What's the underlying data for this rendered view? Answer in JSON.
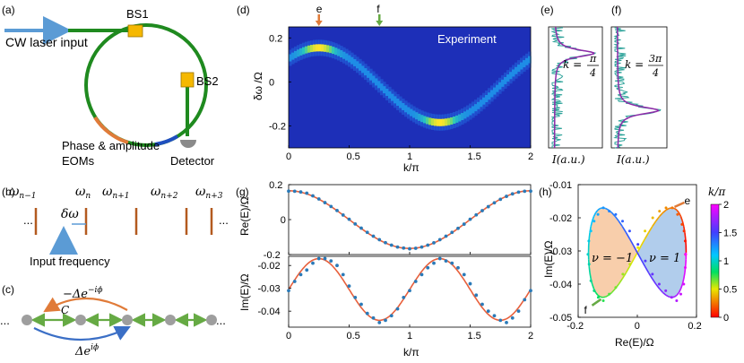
{
  "panel_labels": {
    "a": "(a)",
    "b": "(b)",
    "c": "(c)",
    "d": "(d)",
    "e": "(e)",
    "f": "(f)",
    "g": "(g)",
    "h": "(h)"
  },
  "panel_a": {
    "bs1": "BS1",
    "bs2": "BS2",
    "laser": "CW laser input",
    "eoms_line1": "Phase & amplitude",
    "eoms_line2": "EOMs",
    "detector": "Detector"
  },
  "panel_b": {
    "modes": [
      "ω",
      "ω",
      "ω",
      "ω",
      "ω"
    ],
    "mode_subs": [
      "n−1",
      "n",
      "n+1",
      "n+2",
      "n+3"
    ],
    "ellipsis": "...",
    "delta": "δω",
    "input": "Input frequency"
  },
  "panel_c": {
    "top": "−Δe",
    "top_sup": "−iϕ",
    "bottom": "Δe",
    "bottom_sup": "iϕ",
    "coupling": "C",
    "ellipsis": "..."
  },
  "colors": {
    "ring": "#1f8a1f",
    "laser": "#5b9bd5",
    "bs": "#f5b800",
    "orange": "#e07b39",
    "blue": "#1f4fbf",
    "fit": "#e8603c",
    "dots": "#2a7ab8",
    "modeline": "#b35a1f",
    "arrow_green": "#66aa44"
  },
  "chart_data": [
    {
      "panel": "d",
      "type": "heatmap",
      "title": "Experiment",
      "xlabel": "k/π",
      "ylabel": "δω /Ω",
      "xlim": [
        0,
        2
      ],
      "ylim": [
        -0.3,
        0.25
      ],
      "xticks": [
        "0",
        "0.5",
        "1",
        "1.5",
        "2"
      ],
      "yticks": [
        "0.2",
        "0",
        "-0.2"
      ],
      "markers": [
        {
          "label": "e",
          "k": 0.25,
          "color": "#e07b39"
        },
        {
          "label": "f",
          "k": 0.75,
          "color": "#66aa44"
        }
      ],
      "band": {
        "center": -0.015,
        "amplitude": 0.17,
        "peaks": [
          0.25,
          1.25
        ]
      }
    },
    {
      "panel": "e",
      "type": "line",
      "annotation": "k = π/4",
      "numerator": "π",
      "denominator": "4",
      "xlabel": "I(a.u.)",
      "peak_delta": 0.13
    },
    {
      "panel": "f",
      "type": "line",
      "annotation": "k = 3π/4",
      "numerator": "3π",
      "denominator": "4",
      "xlabel": "I(a.u.)",
      "peak_delta": -0.13
    },
    {
      "panel": "g-top",
      "type": "scatter",
      "ylabel": "Re(E)/Ω",
      "xlim": [
        0,
        2
      ],
      "ylim": [
        -0.2,
        0.2
      ],
      "yticks": [
        "0.2",
        "0",
        "-0.2"
      ],
      "fit": {
        "form": "A cos(πk)",
        "A": 0.165
      },
      "points": [
        [
          0.0,
          0.163
        ],
        [
          0.05,
          0.162
        ],
        [
          0.1,
          0.158
        ],
        [
          0.15,
          0.151
        ],
        [
          0.2,
          0.136
        ],
        [
          0.25,
          0.118
        ],
        [
          0.3,
          0.097
        ],
        [
          0.35,
          0.075
        ],
        [
          0.4,
          0.052
        ],
        [
          0.45,
          0.026
        ],
        [
          0.5,
          0.002
        ],
        [
          0.55,
          -0.025
        ],
        [
          0.6,
          -0.049
        ],
        [
          0.65,
          -0.073
        ],
        [
          0.7,
          -0.095
        ],
        [
          0.75,
          -0.115
        ],
        [
          0.8,
          -0.132
        ],
        [
          0.85,
          -0.146
        ],
        [
          0.9,
          -0.157
        ],
        [
          0.95,
          -0.163
        ],
        [
          1.0,
          -0.167
        ],
        [
          1.05,
          -0.164
        ],
        [
          1.1,
          -0.157
        ],
        [
          1.15,
          -0.146
        ],
        [
          1.2,
          -0.133
        ],
        [
          1.25,
          -0.115
        ],
        [
          1.3,
          -0.095
        ],
        [
          1.35,
          -0.073
        ],
        [
          1.4,
          -0.05
        ],
        [
          1.45,
          -0.026
        ],
        [
          1.5,
          0.002
        ],
        [
          1.55,
          0.027
        ],
        [
          1.6,
          0.051
        ],
        [
          1.65,
          0.074
        ],
        [
          1.7,
          0.096
        ],
        [
          1.75,
          0.116
        ],
        [
          1.8,
          0.133
        ],
        [
          1.85,
          0.147
        ],
        [
          1.9,
          0.157
        ],
        [
          1.95,
          0.162
        ],
        [
          2.0,
          0.163
        ]
      ]
    },
    {
      "panel": "g-bottom",
      "type": "scatter",
      "ylabel": "Im(E)/Ω",
      "xlabel": "k/π",
      "xlim": [
        0,
        2
      ],
      "ylim": [
        -0.047,
        -0.016
      ],
      "xticks": [
        "0",
        "0.5",
        "1",
        "1.5",
        "2"
      ],
      "yticks": [
        "-0.02",
        "-0.03",
        "-0.04"
      ],
      "fit": {
        "form": "B + A sin(2πk)",
        "B": -0.0305,
        "A": 0.0135
      },
      "points": [
        [
          0.0,
          -0.031
        ],
        [
          0.05,
          -0.027
        ],
        [
          0.1,
          -0.024
        ],
        [
          0.15,
          -0.022
        ],
        [
          0.2,
          -0.019
        ],
        [
          0.25,
          -0.017
        ],
        [
          0.3,
          -0.017
        ],
        [
          0.35,
          -0.018
        ],
        [
          0.4,
          -0.02
        ],
        [
          0.45,
          -0.024
        ],
        [
          0.5,
          -0.029
        ],
        [
          0.55,
          -0.034
        ],
        [
          0.6,
          -0.037
        ],
        [
          0.65,
          -0.041
        ],
        [
          0.7,
          -0.043
        ],
        [
          0.75,
          -0.045
        ],
        [
          0.8,
          -0.044
        ],
        [
          0.85,
          -0.042
        ],
        [
          0.9,
          -0.039
        ],
        [
          0.95,
          -0.034
        ],
        [
          1.0,
          -0.031
        ],
        [
          1.05,
          -0.027
        ],
        [
          1.1,
          -0.024
        ],
        [
          1.15,
          -0.021
        ],
        [
          1.2,
          -0.019
        ],
        [
          1.25,
          -0.017
        ],
        [
          1.3,
          -0.018
        ],
        [
          1.35,
          -0.019
        ],
        [
          1.4,
          -0.021
        ],
        [
          1.45,
          -0.024
        ],
        [
          1.5,
          -0.028
        ],
        [
          1.55,
          -0.033
        ],
        [
          1.6,
          -0.037
        ],
        [
          1.65,
          -0.04
        ],
        [
          1.7,
          -0.042
        ],
        [
          1.75,
          -0.044
        ],
        [
          1.8,
          -0.045
        ],
        [
          1.85,
          -0.043
        ],
        [
          1.9,
          -0.04
        ],
        [
          1.95,
          -0.035
        ],
        [
          2.0,
          -0.031
        ]
      ]
    },
    {
      "panel": "h",
      "type": "scatter",
      "xlabel": "Re(E)/Ω",
      "ylabel": "Im(E)/Ω",
      "xlim": [
        -0.2,
        0.2
      ],
      "ylim": [
        -0.05,
        -0.01
      ],
      "xticks": [
        "-0.2",
        "0",
        "0.2"
      ],
      "yticks": [
        "-0.01",
        "-0.02",
        "-0.03",
        "-0.04",
        "-0.05"
      ],
      "regions": [
        {
          "label": "ν = −1",
          "color": "#f7c9a2"
        },
        {
          "label": "ν = 1",
          "color": "#a9c8ea"
        }
      ],
      "markers": [
        {
          "label": "e"
        },
        {
          "label": "f"
        }
      ],
      "colorbar": {
        "label": "k/π",
        "ticks": [
          "2",
          "1.5",
          "1",
          "0.5",
          "0"
        ]
      }
    }
  ]
}
